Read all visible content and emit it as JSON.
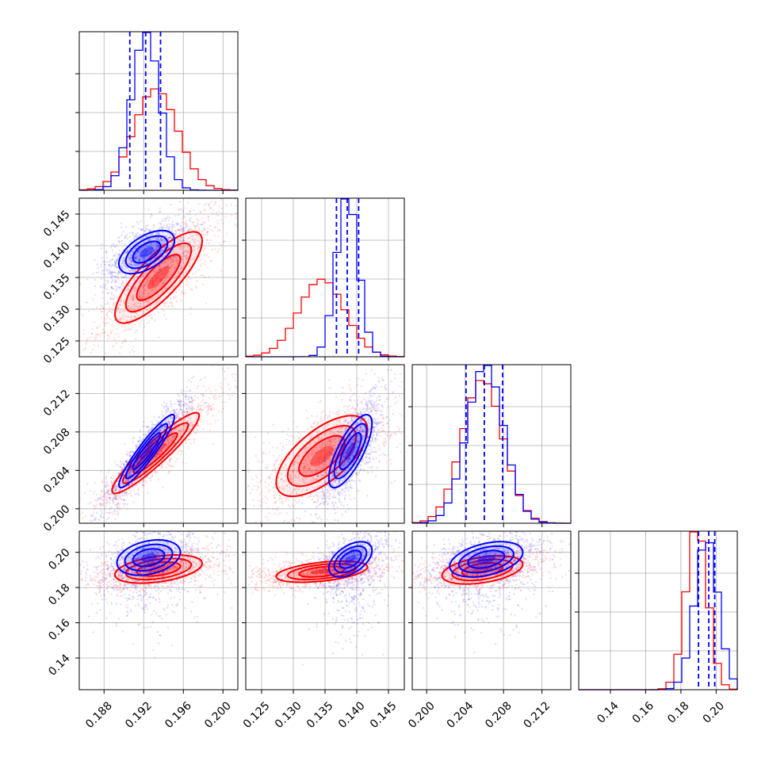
{
  "chart_data": {
    "type": "corner",
    "series": [
      {
        "name": "",
        "color": "#0000ff"
      },
      {
        "name": "",
        "color": "#ff0000"
      }
    ],
    "grid": true,
    "dashed_quantile_lines_color": "#0000ff",
    "parameters": [
      {
        "range": [
          0.1855,
          0.2015
        ],
        "ticks": [
          0.188,
          0.192,
          0.196,
          0.2
        ],
        "tick_labels": [
          "0.188",
          "0.192",
          "0.196",
          "0.200"
        ]
      },
      {
        "range": [
          0.1225,
          0.1475
        ],
        "ticks": [
          0.125,
          0.13,
          0.135,
          0.14,
          0.145
        ],
        "tick_labels": [
          "0.125",
          "0.130",
          "0.135",
          "0.140",
          "0.145"
        ]
      },
      {
        "range": [
          0.1985,
          0.215
        ],
        "ticks": [
          0.2,
          0.204,
          0.208,
          0.212
        ],
        "tick_labels": [
          "0.200",
          "0.204",
          "0.208",
          "0.212"
        ]
      },
      {
        "range": [
          0.122,
          0.212
        ],
        "ticks": [
          0.14,
          0.16,
          0.18,
          0.2
        ],
        "tick_labels": [
          "0.14",
          "0.16",
          "0.18",
          "0.20"
        ]
      }
    ],
    "marginals": [
      {
        "blue": {
          "mean": 0.1922,
          "std": 0.0014,
          "quantiles": [
            0.1906,
            0.1922,
            0.1937
          ]
        },
        "red": {
          "mean": 0.1932,
          "std": 0.0022
        }
      },
      {
        "blue": {
          "mean": 0.1385,
          "std": 0.0017,
          "quantiles": [
            0.1368,
            0.1385,
            0.1403
          ]
        },
        "red": {
          "mean": 0.1345,
          "std": 0.0036
        }
      },
      {
        "blue": {
          "mean": 0.2061,
          "std": 0.0019,
          "quantiles": [
            0.2041,
            0.206,
            0.2079
          ]
        },
        "red": {
          "mean": 0.2058,
          "std": 0.0021
        }
      },
      {
        "blue": {
          "mean": 0.1945,
          "std": 0.0065,
          "quantiles": [
            0.19,
            0.1958,
            0.1992
          ]
        },
        "red": {
          "mean": 0.189,
          "std": 0.006
        }
      }
    ],
    "pairs": [
      {
        "row": 1,
        "col": 0,
        "blue": {
          "center": [
            0.1923,
            0.139
          ],
          "sd": [
            0.0014,
            0.0017
          ],
          "corr": 0.55
        },
        "red": {
          "center": [
            0.1935,
            0.135
          ],
          "sd": [
            0.0022,
            0.0036
          ],
          "corr": 0.8
        }
      },
      {
        "row": 2,
        "col": 0,
        "blue": {
          "center": [
            0.1923,
            0.206
          ],
          "sd": [
            0.0014,
            0.0019
          ],
          "corr": 0.93
        },
        "red": {
          "center": [
            0.1932,
            0.2058
          ],
          "sd": [
            0.0022,
            0.0021
          ],
          "corr": 0.93
        }
      },
      {
        "row": 2,
        "col": 1,
        "blue": {
          "center": [
            0.139,
            0.206
          ],
          "sd": [
            0.0017,
            0.0019
          ],
          "corr": 0.75
        },
        "red": {
          "center": [
            0.1345,
            0.2055
          ],
          "sd": [
            0.0036,
            0.0021
          ],
          "corr": 0.65
        }
      },
      {
        "row": 3,
        "col": 0,
        "blue": {
          "center": [
            0.1925,
            0.197
          ],
          "sd": [
            0.0016,
            0.005
          ],
          "corr": 0.3
        },
        "red": {
          "center": [
            0.1935,
            0.1905
          ],
          "sd": [
            0.0022,
            0.004
          ],
          "corr": 0.4
        }
      },
      {
        "row": 3,
        "col": 1,
        "blue": {
          "center": [
            0.139,
            0.196
          ],
          "sd": [
            0.0017,
            0.005
          ],
          "corr": 0.5
        },
        "red": {
          "center": [
            0.1345,
            0.189
          ],
          "sd": [
            0.0036,
            0.003
          ],
          "corr": 0.45
        }
      },
      {
        "row": 3,
        "col": 2,
        "blue": {
          "center": [
            0.2062,
            0.196
          ],
          "sd": [
            0.0019,
            0.005
          ],
          "corr": 0.4
        },
        "red": {
          "center": [
            0.2058,
            0.19
          ],
          "sd": [
            0.0021,
            0.004
          ],
          "corr": 0.4
        }
      }
    ],
    "scatter_tail": {
      "row": 3,
      "direction": "downward",
      "series": "blue",
      "y_min": 0.135
    }
  }
}
